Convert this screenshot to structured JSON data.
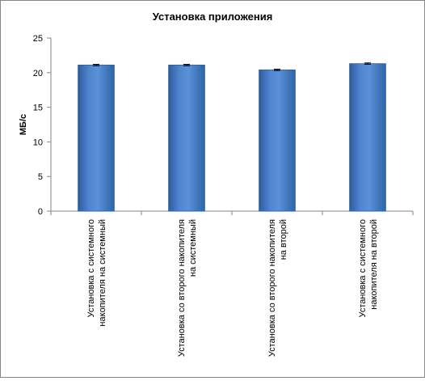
{
  "chart_data": {
    "type": "bar",
    "title": "Установка приложения",
    "xlabel": "",
    "ylabel": "МБ/с",
    "ylim": [
      0,
      25
    ],
    "yticks": [
      0,
      5,
      10,
      15,
      20,
      25
    ],
    "grid": false,
    "legend": "none",
    "categories": [
      [
        "Установка с системного",
        "накопителя на системный"
      ],
      [
        "Установка со второго накопителя",
        "на системный"
      ],
      [
        "Установка со второго накопителя",
        "на второй"
      ],
      [
        "Установка с системного",
        "накопителя на второй"
      ]
    ],
    "values": [
      21.1,
      21.1,
      20.4,
      21.3
    ],
    "errors": [
      0.1,
      0.1,
      0.1,
      0.1
    ],
    "bar_color": "#4a7fc8",
    "bar_edge_color": "#2f5f9e"
  }
}
